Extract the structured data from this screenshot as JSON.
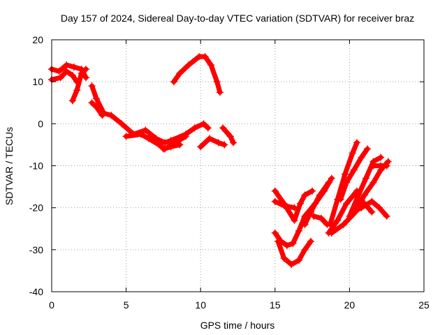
{
  "chart_data": {
    "type": "scatter",
    "title": "Day 157 of 2024, Sidereal Day-to-day VTEC variation (SDTVAR) for receiver braz",
    "xlabel": "GPS time / hours",
    "ylabel": "SDTVAR / TECUs",
    "xlim": [
      0,
      25
    ],
    "ylim": [
      -40,
      20
    ],
    "x_ticks": [
      0,
      5,
      10,
      15,
      20,
      25
    ],
    "y_ticks": [
      20,
      10,
      0,
      -10,
      -20,
      -30,
      -40
    ],
    "grid": true,
    "marker_color": "#ff0000",
    "series": [
      {
        "name": "s1",
        "points": [
          [
            0,
            13
          ],
          [
            0.5,
            12.5
          ],
          [
            1,
            14
          ],
          [
            1.5,
            13.5
          ],
          [
            2,
            13
          ],
          [
            2.3,
            11
          ]
        ]
      },
      {
        "name": "s2",
        "points": [
          [
            0,
            10.5
          ],
          [
            0.6,
            11
          ],
          [
            1,
            12.5
          ],
          [
            1.4,
            11.5
          ],
          [
            1.7,
            10
          ]
        ]
      },
      {
        "name": "s3",
        "points": [
          [
            1.4,
            5.5
          ],
          [
            1.7,
            8
          ],
          [
            2,
            12
          ],
          [
            2.3,
            13
          ]
        ]
      },
      {
        "name": "s4",
        "points": [
          [
            2.7,
            9
          ],
          [
            3,
            6
          ],
          [
            3.5,
            2.5
          ],
          [
            4,
            2
          ],
          [
            4.7,
            0
          ],
          [
            5.5,
            -2.5
          ],
          [
            6.3,
            -1.5
          ],
          [
            7,
            -3.5
          ],
          [
            7.6,
            -4.5
          ],
          [
            8,
            -4
          ],
          [
            9,
            -2.5
          ],
          [
            9.6,
            -1
          ],
          [
            10.2,
            0
          ],
          [
            10.5,
            -1
          ]
        ]
      },
      {
        "name": "s5",
        "points": [
          [
            2.7,
            5
          ],
          [
            3,
            4
          ],
          [
            3.4,
            2
          ]
        ]
      },
      {
        "name": "s6",
        "points": [
          [
            5,
            -3
          ],
          [
            6,
            -2.5
          ],
          [
            6.5,
            -3.5
          ],
          [
            7.2,
            -5
          ],
          [
            7.6,
            -6
          ],
          [
            8.3,
            -4.5
          ],
          [
            9,
            -3
          ]
        ]
      },
      {
        "name": "s7",
        "points": [
          [
            7.5,
            -6
          ],
          [
            8,
            -5.5
          ],
          [
            8.6,
            -5
          ]
        ]
      },
      {
        "name": "s8",
        "points": [
          [
            10,
            -5.5
          ],
          [
            10.6,
            -3.5
          ],
          [
            11.2,
            -4.5
          ],
          [
            11.6,
            -5
          ]
        ]
      },
      {
        "name": "s9",
        "points": [
          [
            11.5,
            -1
          ],
          [
            12,
            -3
          ],
          [
            12.2,
            -4.5
          ]
        ]
      },
      {
        "name": "s10",
        "points": [
          [
            8.2,
            10
          ],
          [
            8.6,
            12
          ],
          [
            9.2,
            14
          ],
          [
            9.9,
            16
          ],
          [
            10.3,
            16
          ],
          [
            10.7,
            14
          ],
          [
            11.1,
            10
          ],
          [
            11.3,
            7.5
          ]
        ]
      },
      {
        "name": "s11",
        "points": [
          [
            15,
            -16
          ],
          [
            15.6,
            -19
          ],
          [
            16.3,
            -23
          ],
          [
            16.7,
            -19
          ],
          [
            17,
            -17
          ],
          [
            17.5,
            -16
          ]
        ]
      },
      {
        "name": "s12",
        "points": [
          [
            15,
            -26
          ],
          [
            15.4,
            -28
          ],
          [
            15.8,
            -29
          ],
          [
            16.2,
            -28.5
          ],
          [
            16.6,
            -25.5
          ],
          [
            17,
            -22
          ],
          [
            17.7,
            -19
          ],
          [
            18.3,
            -16
          ],
          [
            18.8,
            -13
          ]
        ]
      },
      {
        "name": "s13",
        "points": [
          [
            15.2,
            -28
          ],
          [
            15.6,
            -32
          ],
          [
            16.1,
            -33.5
          ],
          [
            16.6,
            -32.5
          ],
          [
            17,
            -30
          ],
          [
            17.4,
            -28
          ]
        ]
      },
      {
        "name": "s14",
        "points": [
          [
            15,
            -18.5
          ],
          [
            15.6,
            -19.5
          ],
          [
            16.3,
            -20
          ]
        ]
      },
      {
        "name": "s15",
        "points": [
          [
            17,
            -24
          ],
          [
            17.4,
            -21
          ],
          [
            18,
            -17
          ],
          [
            18.6,
            -14
          ]
        ]
      },
      {
        "name": "s16",
        "points": [
          [
            18.7,
            -24
          ],
          [
            19.2,
            -18
          ],
          [
            19.7,
            -12
          ],
          [
            20.2,
            -7
          ],
          [
            20.5,
            -4.5
          ]
        ]
      },
      {
        "name": "s17",
        "points": [
          [
            18.8,
            -26
          ],
          [
            19.6,
            -24
          ],
          [
            20.4,
            -21
          ],
          [
            21,
            -17
          ],
          [
            21.6,
            -14
          ],
          [
            22.1,
            -11
          ],
          [
            22.6,
            -9
          ]
        ]
      },
      {
        "name": "s18",
        "points": [
          [
            20,
            -22
          ],
          [
            20.6,
            -17
          ],
          [
            21.1,
            -13
          ],
          [
            21.6,
            -9
          ],
          [
            22.1,
            -8
          ]
        ]
      },
      {
        "name": "s19",
        "points": [
          [
            19.4,
            -18
          ],
          [
            19.8,
            -14
          ],
          [
            20.3,
            -11
          ],
          [
            20.8,
            -8
          ],
          [
            21.2,
            -6
          ]
        ]
      },
      {
        "name": "s20",
        "points": [
          [
            18.6,
            -26
          ],
          [
            19.2,
            -23
          ],
          [
            19.8,
            -19
          ],
          [
            20.5,
            -16
          ]
        ]
      },
      {
        "name": "s21",
        "points": [
          [
            20.2,
            -21
          ],
          [
            20.8,
            -20
          ],
          [
            21.5,
            -18.5
          ],
          [
            22,
            -20
          ],
          [
            22.5,
            -22
          ]
        ]
      },
      {
        "name": "s22",
        "points": [
          [
            20.4,
            -17
          ],
          [
            21,
            -19
          ],
          [
            21.5,
            -21
          ]
        ]
      },
      {
        "name": "s23",
        "points": [
          [
            18.5,
            -24
          ],
          [
            18.1,
            -22.5
          ],
          [
            17.6,
            -22
          ]
        ]
      },
      {
        "name": "s24",
        "points": [
          [
            21.6,
            -10
          ],
          [
            22.1,
            -10
          ],
          [
            22.5,
            -10
          ]
        ]
      }
    ]
  }
}
